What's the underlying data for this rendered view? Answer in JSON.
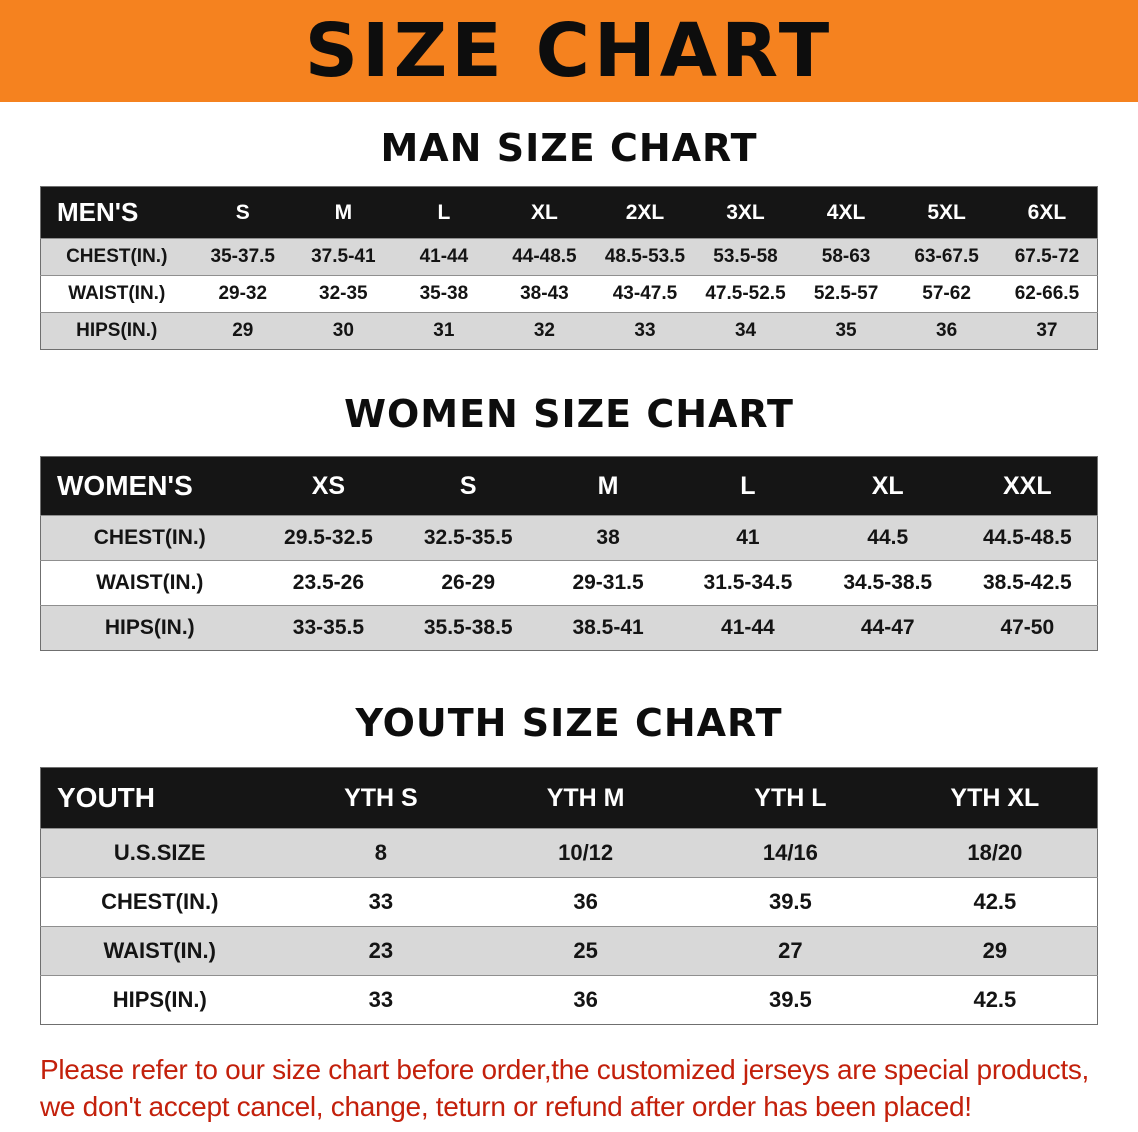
{
  "banner": {
    "title": "SIZE CHART"
  },
  "colors": {
    "banner_bg": "#F5821F",
    "header_bg": "#151515",
    "stripe": "#D8D8D8",
    "disclaimer_red": "#C3200B"
  },
  "sections": [
    {
      "heading": "MAN SIZE CHART",
      "header": [
        "MEN'S",
        "S",
        "M",
        "L",
        "XL",
        "2XL",
        "3XL",
        "4XL",
        "5XL",
        "6XL"
      ],
      "rows": [
        [
          "CHEST(IN.)",
          "35-37.5",
          "37.5-41",
          "41-44",
          "44-48.5",
          "48.5-53.5",
          "53.5-58",
          "58-63",
          "63-67.5",
          "67.5-72"
        ],
        [
          "WAIST(IN.)",
          "29-32",
          "32-35",
          "35-38",
          "38-43",
          "43-47.5",
          "47.5-52.5",
          "52.5-57",
          "57-62",
          "62-66.5"
        ],
        [
          "HIPS(IN.)",
          "29",
          "30",
          "31",
          "32",
          "33",
          "34",
          "35",
          "36",
          "37"
        ]
      ]
    },
    {
      "heading": "WOMEN SIZE CHART",
      "header": [
        "WOMEN'S",
        "XS",
        "S",
        "M",
        "L",
        "XL",
        "XXL"
      ],
      "rows": [
        [
          "CHEST(IN.)",
          "29.5-32.5",
          "32.5-35.5",
          "38",
          "41",
          "44.5",
          "44.5-48.5"
        ],
        [
          "WAIST(IN.)",
          "23.5-26",
          "26-29",
          "29-31.5",
          "31.5-34.5",
          "34.5-38.5",
          "38.5-42.5"
        ],
        [
          "HIPS(IN.)",
          "33-35.5",
          "35.5-38.5",
          "38.5-41",
          "41-44",
          "44-47",
          "47-50"
        ]
      ]
    },
    {
      "heading": "YOUTH SIZE CHART",
      "header": [
        "YOUTH",
        "YTH S",
        "YTH M",
        "YTH L",
        "YTH XL"
      ],
      "rows": [
        [
          "U.S.SIZE",
          "8",
          "10/12",
          "14/16",
          "18/20"
        ],
        [
          "CHEST(IN.)",
          "33",
          "36",
          "39.5",
          "42.5"
        ],
        [
          "WAIST(IN.)",
          "23",
          "25",
          "27",
          "29"
        ],
        [
          "HIPS(IN.)",
          "33",
          "36",
          "39.5",
          "42.5"
        ]
      ]
    }
  ],
  "disclaimer": {
    "line1": "Please refer to our size chart before order,the customized jerseys are special products,",
    "line2": "we don't accept cancel, change, teturn or refund after order has been placed!"
  }
}
